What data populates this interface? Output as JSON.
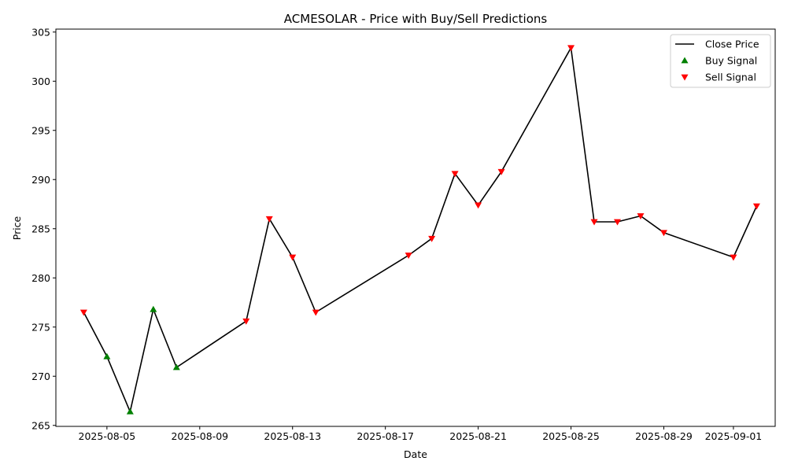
{
  "chart_data": {
    "type": "line",
    "title": "ACMESOLAR - Price with Buy/Sell Predictions",
    "xlabel": "Date",
    "ylabel": "Price",
    "x_ticks": [
      "2025-08-05",
      "2025-08-09",
      "2025-08-13",
      "2025-08-17",
      "2025-08-21",
      "2025-08-25",
      "2025-08-29",
      "2025-09-01"
    ],
    "y_ticks": [
      265,
      270,
      275,
      280,
      285,
      290,
      295,
      300,
      305
    ],
    "xlim": [
      "2025-08-02T19:12",
      "2025-09-02T19:12"
    ],
    "ylim": [
      264.9,
      305.3
    ],
    "legend_position": "top-right",
    "grid": false,
    "series": [
      {
        "name": "Close Price",
        "kind": "line",
        "color": "#000000",
        "points": [
          {
            "x": "2025-08-04",
            "y": 276.5
          },
          {
            "x": "2025-08-05",
            "y": 272.0
          },
          {
            "x": "2025-08-06",
            "y": 266.4
          },
          {
            "x": "2025-08-07",
            "y": 276.8
          },
          {
            "x": "2025-08-08",
            "y": 270.9
          },
          {
            "x": "2025-08-11",
            "y": 275.6
          },
          {
            "x": "2025-08-12",
            "y": 286.0
          },
          {
            "x": "2025-08-13",
            "y": 282.1
          },
          {
            "x": "2025-08-14",
            "y": 276.5
          },
          {
            "x": "2025-08-18",
            "y": 282.3
          },
          {
            "x": "2025-08-19",
            "y": 284.0
          },
          {
            "x": "2025-08-20",
            "y": 290.6
          },
          {
            "x": "2025-08-21",
            "y": 287.4
          },
          {
            "x": "2025-08-22",
            "y": 290.8
          },
          {
            "x": "2025-08-25",
            "y": 303.4
          },
          {
            "x": "2025-08-26",
            "y": 285.7
          },
          {
            "x": "2025-08-27",
            "y": 285.7
          },
          {
            "x": "2025-08-28",
            "y": 286.3
          },
          {
            "x": "2025-08-29",
            "y": 284.6
          },
          {
            "x": "2025-09-01",
            "y": 282.1
          },
          {
            "x": "2025-09-02",
            "y": 287.3
          }
        ]
      },
      {
        "name": "Buy Signal",
        "kind": "scatter",
        "marker": "triangle-up",
        "color": "#008000",
        "points": [
          {
            "x": "2025-08-05",
            "y": 272.0
          },
          {
            "x": "2025-08-06",
            "y": 266.4
          },
          {
            "x": "2025-08-07",
            "y": 276.8
          },
          {
            "x": "2025-08-08",
            "y": 270.9
          }
        ]
      },
      {
        "name": "Sell Signal",
        "kind": "scatter",
        "marker": "triangle-down",
        "color": "#ff0000",
        "points": [
          {
            "x": "2025-08-04",
            "y": 276.5
          },
          {
            "x": "2025-08-11",
            "y": 275.6
          },
          {
            "x": "2025-08-12",
            "y": 286.0
          },
          {
            "x": "2025-08-13",
            "y": 282.1
          },
          {
            "x": "2025-08-14",
            "y": 276.5
          },
          {
            "x": "2025-08-18",
            "y": 282.3
          },
          {
            "x": "2025-08-19",
            "y": 284.0
          },
          {
            "x": "2025-08-20",
            "y": 290.6
          },
          {
            "x": "2025-08-21",
            "y": 287.4
          },
          {
            "x": "2025-08-22",
            "y": 290.8
          },
          {
            "x": "2025-08-25",
            "y": 303.4
          },
          {
            "x": "2025-08-26",
            "y": 285.7
          },
          {
            "x": "2025-08-27",
            "y": 285.7
          },
          {
            "x": "2025-08-28",
            "y": 286.3
          },
          {
            "x": "2025-08-29",
            "y": 284.6
          },
          {
            "x": "2025-09-01",
            "y": 282.1
          },
          {
            "x": "2025-09-02",
            "y": 287.3
          }
        ]
      }
    ]
  }
}
